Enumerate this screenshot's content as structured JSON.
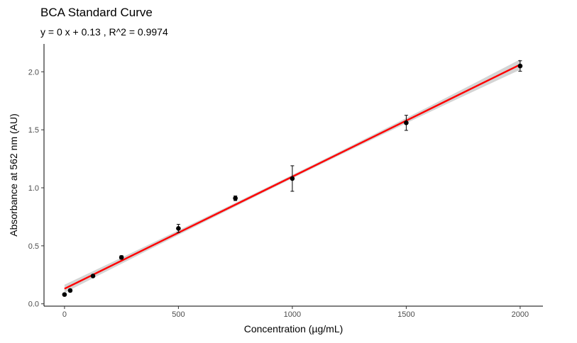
{
  "chart_data": {
    "type": "scatter",
    "title": "BCA Standard Curve",
    "subtitle": "y = 0 x + 0.13 , R^2 = 0.9974",
    "xlabel": "Concentration (µg/mL)",
    "ylabel": "Absorbance at 562 nm (AU)",
    "xlim": [
      -90,
      2100
    ],
    "ylim": [
      -0.02,
      2.24
    ],
    "x_ticks": [
      0,
      500,
      1000,
      1500,
      2000
    ],
    "y_ticks": [
      0.0,
      0.5,
      1.0,
      1.5,
      2.0
    ],
    "x_tick_labels": [
      "0",
      "500",
      "1000",
      "1500",
      "2000"
    ],
    "y_tick_labels": [
      "0.0",
      "0.5",
      "1.0",
      "1.5",
      "2.0"
    ],
    "grid": false,
    "points": [
      {
        "x": 0,
        "y": 0.08,
        "err": 0.01
      },
      {
        "x": 25,
        "y": 0.115,
        "err": 0.012
      },
      {
        "x": 125,
        "y": 0.24,
        "err": 0.01
      },
      {
        "x": 250,
        "y": 0.4,
        "err": 0.015
      },
      {
        "x": 500,
        "y": 0.65,
        "err": 0.035
      },
      {
        "x": 750,
        "y": 0.91,
        "err": 0.02
      },
      {
        "x": 1000,
        "y": 1.08,
        "err": 0.11
      },
      {
        "x": 1500,
        "y": 1.56,
        "err": 0.065
      },
      {
        "x": 2000,
        "y": 2.05,
        "err": 0.045
      }
    ],
    "fit": {
      "slope": 0.000966,
      "intercept": 0.13,
      "x_range": [
        0,
        2000
      ],
      "ci_halfwidth": [
        0.035,
        0.015,
        0.045
      ]
    },
    "colors": {
      "points": "#000000",
      "fit_line": "#ff0000",
      "ci_band": "#cccccc"
    }
  }
}
